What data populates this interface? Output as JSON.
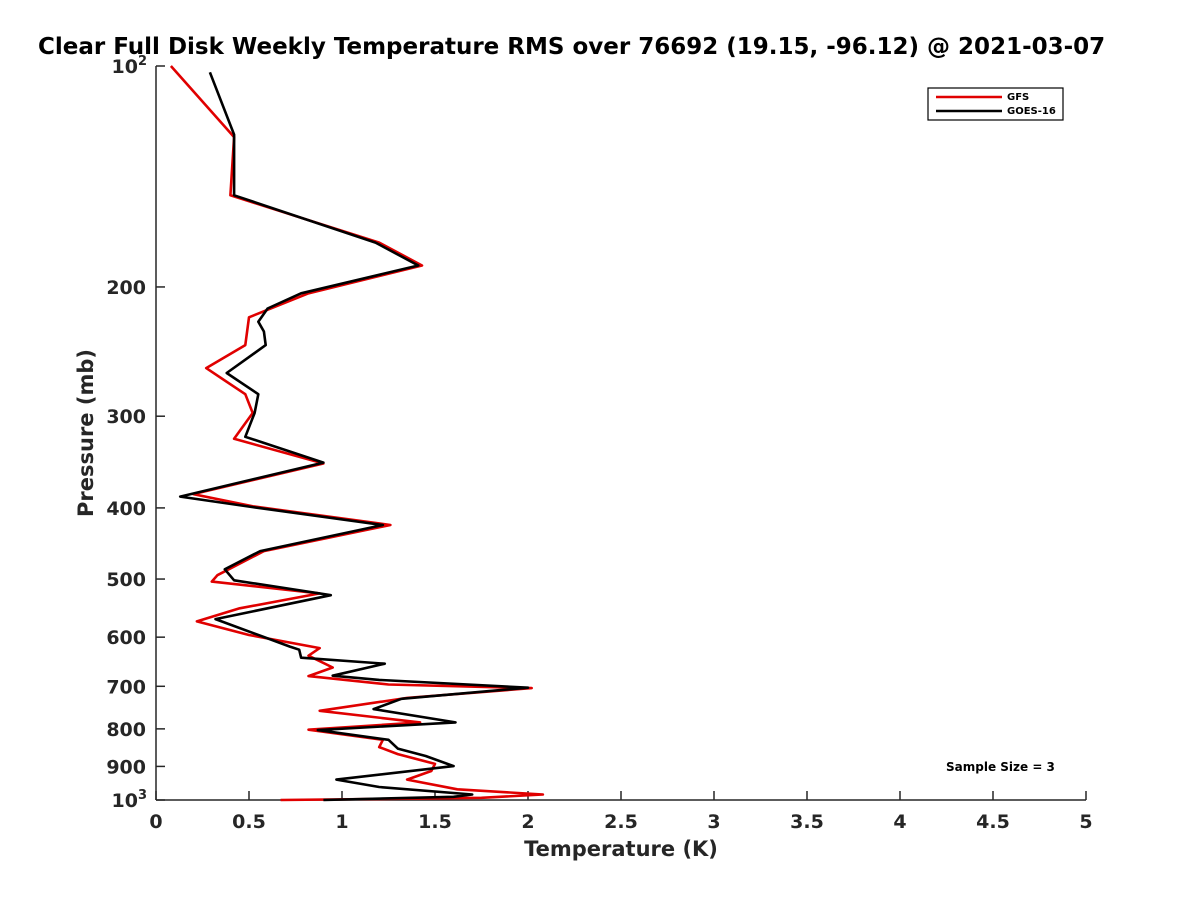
{
  "chart_data": {
    "type": "line",
    "title": "Clear Full Disk Weekly Temperature RMS over 76692 (19.15, -96.12) @ 2021-03-07",
    "xlabel": "Temperature (K)",
    "ylabel": "Pressure (mb)",
    "xlim": [
      0,
      5
    ],
    "ylim": [
      100,
      1000
    ],
    "yscale": "log",
    "yreversed": true,
    "grid": false,
    "legend_location": "top-right",
    "x_ticks": [
      0,
      0.5,
      1,
      1.5,
      2,
      2.5,
      3,
      3.5,
      4,
      4.5,
      5
    ],
    "x_tick_labels": [
      "0",
      "0.5",
      "1",
      "1.5",
      "2",
      "2.5",
      "3",
      "3.5",
      "4",
      "4.5",
      "5"
    ],
    "y_ticks": [
      {
        "value": 100,
        "base": "10",
        "exp": "2"
      },
      {
        "value": 200,
        "label": "200"
      },
      {
        "value": 300,
        "label": "300"
      },
      {
        "value": 400,
        "label": "400"
      },
      {
        "value": 500,
        "label": "500"
      },
      {
        "value": 600,
        "label": "600"
      },
      {
        "value": 700,
        "label": "700"
      },
      {
        "value": 800,
        "label": "800"
      },
      {
        "value": 900,
        "label": "900"
      },
      {
        "value": 1000,
        "base": "10",
        "exp": "3"
      }
    ],
    "series": [
      {
        "name": "GFS",
        "color": "#e00000",
        "points": [
          [
            0.08,
            100
          ],
          [
            0.42,
            125
          ],
          [
            0.4,
            150
          ],
          [
            1.2,
            174
          ],
          [
            1.43,
            187
          ],
          [
            0.82,
            204
          ],
          [
            0.5,
            220
          ],
          [
            0.48,
            240
          ],
          [
            0.27,
            258
          ],
          [
            0.48,
            280
          ],
          [
            0.52,
            297
          ],
          [
            0.42,
            322
          ],
          [
            0.9,
            348
          ],
          [
            0.2,
            383
          ],
          [
            0.52,
            398
          ],
          [
            1.26,
            422
          ],
          [
            0.58,
            458
          ],
          [
            0.33,
            494
          ],
          [
            0.3,
            504
          ],
          [
            0.88,
            523
          ],
          [
            0.45,
            548
          ],
          [
            0.22,
            571
          ],
          [
            0.5,
            596
          ],
          [
            0.88,
            621
          ],
          [
            0.82,
            636
          ],
          [
            0.95,
            660
          ],
          [
            0.82,
            678
          ],
          [
            1.25,
            696
          ],
          [
            2.02,
            704
          ],
          [
            1.35,
            726
          ],
          [
            0.88,
            756
          ],
          [
            1.42,
            784
          ],
          [
            0.82,
            802
          ],
          [
            1.22,
            828
          ],
          [
            1.2,
            847
          ],
          [
            1.3,
            866
          ],
          [
            1.5,
            893
          ],
          [
            1.48,
            913
          ],
          [
            1.35,
            938
          ],
          [
            1.62,
            967
          ],
          [
            2.08,
            983
          ],
          [
            1.75,
            993
          ],
          [
            0.67,
            1000
          ]
        ]
      },
      {
        "name": "GOES-16",
        "color": "#000000",
        "points": [
          [
            0.29,
            102
          ],
          [
            0.42,
            124
          ],
          [
            0.42,
            150
          ],
          [
            1.18,
            174
          ],
          [
            1.41,
            187
          ],
          [
            0.78,
            204
          ],
          [
            0.6,
            214
          ],
          [
            0.55,
            223
          ],
          [
            0.58,
            230
          ],
          [
            0.59,
            240
          ],
          [
            0.38,
            262
          ],
          [
            0.55,
            280
          ],
          [
            0.53,
            297
          ],
          [
            0.48,
            320
          ],
          [
            0.9,
            347
          ],
          [
            0.13,
            386
          ],
          [
            0.52,
            399
          ],
          [
            1.22,
            422
          ],
          [
            0.56,
            458
          ],
          [
            0.37,
            485
          ],
          [
            0.42,
            502
          ],
          [
            0.94,
            526
          ],
          [
            0.32,
            567
          ],
          [
            0.72,
            618
          ],
          [
            0.77,
            624
          ],
          [
            0.78,
            640
          ],
          [
            1.23,
            652
          ],
          [
            0.95,
            677
          ],
          [
            1.2,
            686
          ],
          [
            2.0,
            703
          ],
          [
            1.32,
            728
          ],
          [
            1.17,
            752
          ],
          [
            1.61,
            784
          ],
          [
            0.87,
            803
          ],
          [
            1.25,
            828
          ],
          [
            1.3,
            851
          ],
          [
            1.45,
            871
          ],
          [
            1.6,
            899
          ],
          [
            0.97,
            938
          ],
          [
            1.2,
            960
          ],
          [
            1.7,
            983
          ],
          [
            1.6,
            990
          ],
          [
            0.9,
            1000
          ]
        ]
      }
    ],
    "legend": [
      {
        "label": "GFS",
        "color": "#e00000"
      },
      {
        "label": "GOES-16",
        "color": "#000000"
      }
    ],
    "annotation": "Sample Size = 3"
  }
}
